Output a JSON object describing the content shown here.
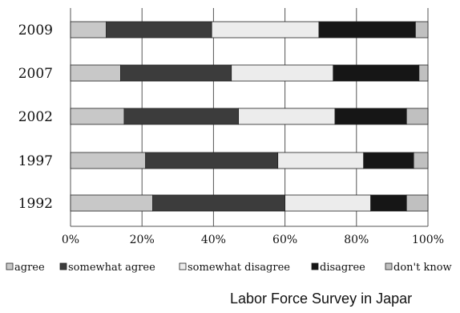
{
  "chart_data": {
    "type": "bar",
    "orientation": "horizontal",
    "stacked": true,
    "percent": true,
    "categories": [
      "2009",
      "2007",
      "2002",
      "1997",
      "1992"
    ],
    "xlim": [
      0,
      100
    ],
    "xticks": [
      "0%",
      "20%",
      "40%",
      "60%",
      "80%",
      "100%"
    ],
    "grid": "vertical",
    "legend_placement": "bottom",
    "series": [
      {
        "name": "agree",
        "color": "#c8c8c8",
        "values": [
          10,
          14,
          15,
          21,
          23
        ]
      },
      {
        "name": "somewhat agree",
        "color": "#3c3c3c",
        "values": [
          29.5,
          31,
          32,
          37,
          37
        ]
      },
      {
        "name": "somewhat disagree",
        "color": "#ececec",
        "values": [
          30,
          28.5,
          27,
          24,
          24
        ]
      },
      {
        "name": "disagree",
        "color": "#161616",
        "values": [
          27,
          24,
          20,
          14,
          10
        ]
      },
      {
        "name": "don't know",
        "color": "#c0c0c0",
        "values": [
          3.5,
          2.5,
          6,
          4,
          6
        ]
      }
    ]
  },
  "source": "Labor Force Survey in Japar"
}
